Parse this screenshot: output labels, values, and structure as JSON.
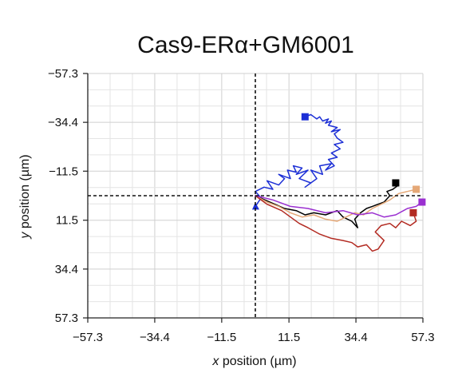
{
  "chart_data": {
    "type": "line",
    "title": "Cas9-ERα+GM6001",
    "xlabel": "x position (µm)",
    "ylabel": "y position (µm)",
    "xlim": [
      -57.3,
      57.3
    ],
    "ylim": [
      -57.3,
      57.3
    ],
    "y_inverted": true,
    "grid": true,
    "xticks": [
      -57.3,
      -34.4,
      -11.5,
      11.5,
      34.4,
      57.3
    ],
    "yticks": [
      -57.3,
      -34.4,
      -11.5,
      11.5,
      34.4,
      57.3
    ],
    "xtick_labels": [
      "−57.3",
      "−34.4",
      "−11.5",
      "11.5",
      "34.4",
      "57.3"
    ],
    "ytick_labels": [
      "−57.3",
      "−34.4",
      "−11.5",
      "11.5",
      "34.4",
      "57.3"
    ],
    "crosshair": {
      "x": 0,
      "y": 0,
      "style": "dashed"
    },
    "series": [
      {
        "color": "#1c2fd6",
        "end_marker": "square",
        "x": [
          0,
          2,
          0,
          3,
          6,
          4,
          8,
          10,
          8,
          12,
          11,
          14,
          13,
          16,
          14,
          18,
          15,
          19,
          17,
          21,
          19,
          23,
          22,
          26,
          24,
          27,
          25,
          28,
          26,
          29,
          27,
          30,
          28,
          27,
          29,
          26,
          28,
          25,
          26,
          24,
          25,
          23,
          22,
          21,
          20,
          19,
          17
        ],
        "y": [
          5,
          1,
          -2,
          -4,
          -3,
          -7,
          -5,
          -8,
          -10,
          -8,
          -12,
          -11,
          -14,
          -13,
          -10,
          -12,
          -8,
          -6,
          -4,
          -8,
          -12,
          -10,
          -14,
          -15,
          -12,
          -14,
          -17,
          -18,
          -20,
          -22,
          -24,
          -25,
          -27,
          -29,
          -31,
          -30,
          -32,
          -33,
          -35,
          -34,
          -36,
          -35,
          -37,
          -36,
          -37,
          -38,
          -37
        ]
      },
      {
        "color": "#000000",
        "end_marker": "square",
        "x": [
          0,
          5,
          10,
          14,
          17,
          20,
          24,
          28,
          30,
          33,
          35,
          34,
          36,
          38,
          40,
          42,
          44,
          46,
          45,
          47,
          48,
          49,
          48
        ],
        "y": [
          0,
          3,
          6,
          7,
          9,
          8,
          9,
          7,
          10,
          12,
          15,
          11,
          8,
          6,
          5,
          4,
          3,
          0,
          -2,
          -3,
          -4,
          -5,
          -6
        ]
      },
      {
        "color": "#e5a877",
        "end_marker": "square",
        "x": [
          0,
          4,
          8,
          12,
          16,
          20,
          24,
          28,
          31,
          34,
          37,
          40,
          43,
          46,
          49,
          52,
          55
        ],
        "y": [
          0,
          3,
          5,
          8,
          10,
          9,
          11,
          12,
          10,
          8,
          9,
          6,
          4,
          2,
          -1,
          -2,
          -3
        ]
      },
      {
        "color": "#b32b22",
        "end_marker": "square",
        "x": [
          0,
          4,
          9,
          12,
          15,
          18,
          22,
          26,
          30,
          33,
          35,
          38,
          40,
          42,
          44,
          41,
          43,
          46,
          48,
          50,
          53,
          55,
          54
        ],
        "y": [
          0,
          4,
          7,
          10,
          13,
          15,
          18,
          20,
          21,
          22,
          24,
          23,
          26,
          25,
          21,
          17,
          14,
          13,
          15,
          12,
          14,
          12,
          8
        ]
      },
      {
        "color": "#9a2fd0",
        "end_marker": "square",
        "x": [
          0,
          6,
          12,
          18,
          24,
          30,
          35,
          40,
          44,
          48,
          52,
          55,
          57
        ],
        "y": [
          0,
          2,
          5,
          6,
          8,
          7,
          9,
          8,
          10,
          9,
          6,
          5,
          3
        ]
      }
    ]
  }
}
